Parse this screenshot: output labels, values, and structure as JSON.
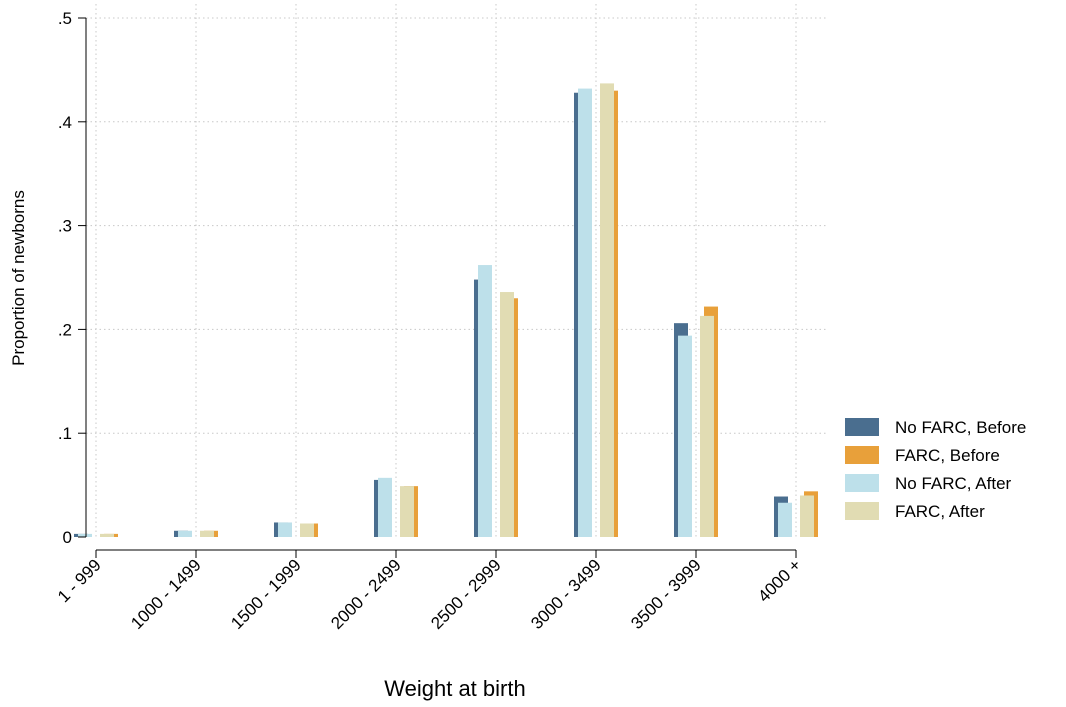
{
  "chart_data": {
    "type": "bar",
    "title": "",
    "xlabel": "Weight at birth",
    "ylabel": "Proportion of newborns",
    "ylim": [
      0,
      0.5
    ],
    "yticks": [
      0,
      0.1,
      0.2,
      0.3,
      0.4,
      0.5
    ],
    "ytick_labels": [
      "0",
      ".1",
      ".2",
      ".3",
      ".4",
      ".5"
    ],
    "grid": true,
    "legend_position": "right",
    "categories": [
      "1 - 999",
      "1000 - 1499",
      "1500 - 1999",
      "2000 - 2499",
      "2500 - 2999",
      "3000 - 3499",
      "3500 - 3999",
      "4000 +"
    ],
    "series": [
      {
        "name": "No FARC, Before",
        "color": "#4a6e8f",
        "values": [
          0.003,
          0.006,
          0.014,
          0.055,
          0.248,
          0.428,
          0.206,
          0.039
        ]
      },
      {
        "name": "FARC, Before",
        "color": "#e8a03a",
        "values": [
          0.003,
          0.006,
          0.013,
          0.049,
          0.23,
          0.43,
          0.222,
          0.044
        ]
      },
      {
        "name": "No FARC, After",
        "color": "#bde0ea",
        "values": [
          0.003,
          0.006,
          0.014,
          0.057,
          0.262,
          0.432,
          0.194,
          0.033
        ]
      },
      {
        "name": "FARC, After",
        "color": "#e1dcb3",
        "values": [
          0.003,
          0.006,
          0.013,
          0.049,
          0.236,
          0.437,
          0.213,
          0.04
        ]
      }
    ]
  }
}
